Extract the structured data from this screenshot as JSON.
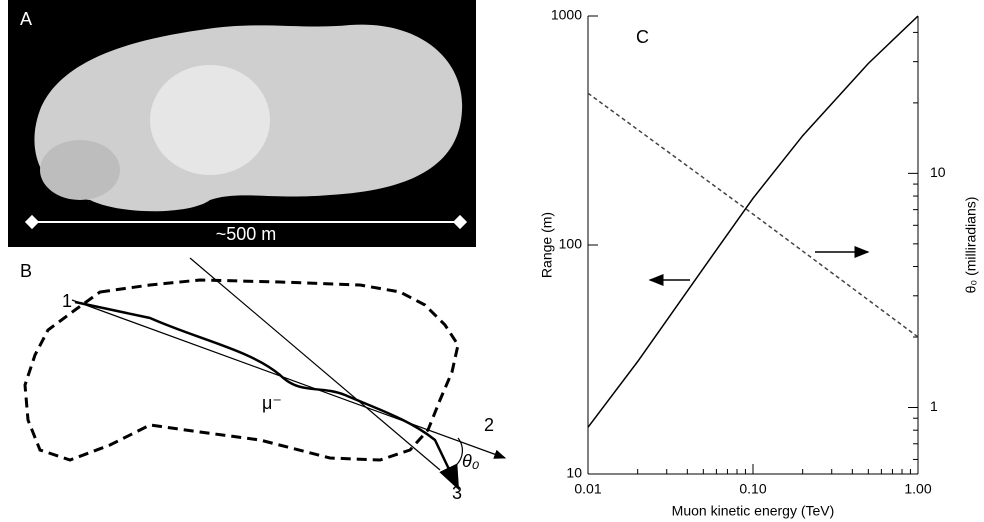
{
  "panel_a": {
    "label": "A",
    "scale_text": "~500 m"
  },
  "panel_b": {
    "label": "B",
    "track_in": "1",
    "track_out": "2",
    "track_scattered": "3",
    "particle": "μ⁻",
    "angle": "θ₀"
  },
  "chart_data": {
    "type": "line",
    "annotation": "C",
    "x_label": "Muon kinetic energy (TeV)",
    "y_label": "Range (m)",
    "y2_label": "θ₀ (milliradians)",
    "xscale": "log",
    "yscale": "log",
    "y2scale": "log",
    "xlim": [
      0.01,
      1
    ],
    "ylim": [
      10,
      1000
    ],
    "y2lim": [
      0.52,
      47
    ],
    "xticks": [
      {
        "value": 0.01,
        "label": "0.01"
      },
      {
        "value": 0.1,
        "label": "0.10"
      },
      {
        "value": 1,
        "label": "1.00"
      }
    ],
    "x_minor_ticks": [
      0.02,
      0.03,
      0.04,
      0.05,
      0.06,
      0.07,
      0.08,
      0.09,
      0.2,
      0.3,
      0.4,
      0.5,
      0.6,
      0.7,
      0.8,
      0.9
    ],
    "yticks": [
      10,
      100,
      1000
    ],
    "y2ticks": [
      1,
      10
    ],
    "y2_minor_ticks": [
      0.6,
      0.7,
      0.8,
      0.9,
      2,
      3,
      4,
      5,
      6,
      7,
      8,
      9,
      20,
      30,
      40
    ],
    "series": [
      {
        "color": "#000000",
        "line_style": "solid",
        "x": [
          0.01,
          0.02,
          0.05,
          0.1,
          0.2,
          0.5,
          1
        ],
        "values": [
          16,
          31,
          79,
          160,
          300,
          620,
          1000
        ]
      },
      {
        "color": "#444444",
        "line_style": "dashed",
        "axis": "y2",
        "x": [
          0.01,
          0.1,
          1
        ],
        "values": [
          22,
          6.7,
          2.0
        ]
      }
    ]
  }
}
